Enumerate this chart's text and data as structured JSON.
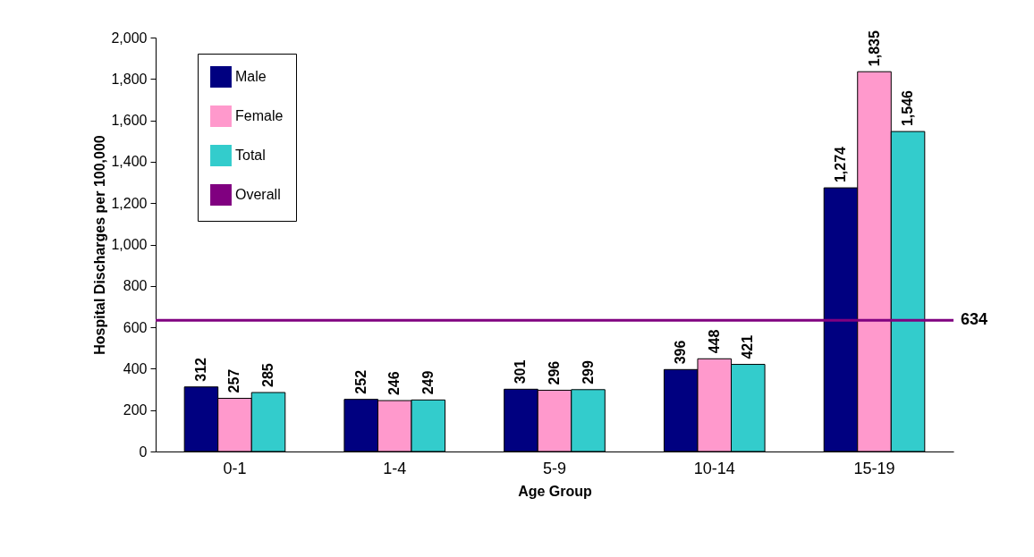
{
  "chart_data": {
    "type": "bar",
    "xlabel": "Age Group",
    "ylabel": "Hospital Discharges per 100,000",
    "categories": [
      "0-1",
      "1-4",
      "5-9",
      "10-14",
      "15-19"
    ],
    "series": [
      {
        "name": "Male",
        "color": "#000080",
        "values": [
          312,
          252,
          301,
          396,
          1274
        ],
        "value_labels": [
          "312",
          "252",
          "301",
          "396",
          "1,274"
        ]
      },
      {
        "name": "Female",
        "color": "#ff99cc",
        "values": [
          257,
          246,
          296,
          448,
          1835
        ],
        "value_labels": [
          "257",
          "246",
          "296",
          "448",
          "1,835"
        ]
      },
      {
        "name": "Total",
        "color": "#33cccc",
        "values": [
          285,
          249,
          299,
          421,
          1546
        ],
        "value_labels": [
          "285",
          "249",
          "299",
          "421",
          "1,546"
        ]
      }
    ],
    "ylim": [
      0,
      2000
    ],
    "yticks": [
      0,
      200,
      400,
      600,
      800,
      {
        "value": 1000,
        "label": "1,000"
      },
      {
        "value": 1200,
        "label": "1,200"
      },
      {
        "value": 1400,
        "label": "1,400"
      },
      {
        "value": 1600,
        "label": "1,600"
      },
      {
        "value": 1800,
        "label": "1,800"
      },
      {
        "value": 2000,
        "label": "2,000"
      }
    ],
    "ref_lines": [
      {
        "axis": "y",
        "value": 634,
        "label": "Overall",
        "color": "#800080"
      }
    ],
    "annotations": [
      "634"
    ],
    "grid": false,
    "legend": "top left"
  }
}
